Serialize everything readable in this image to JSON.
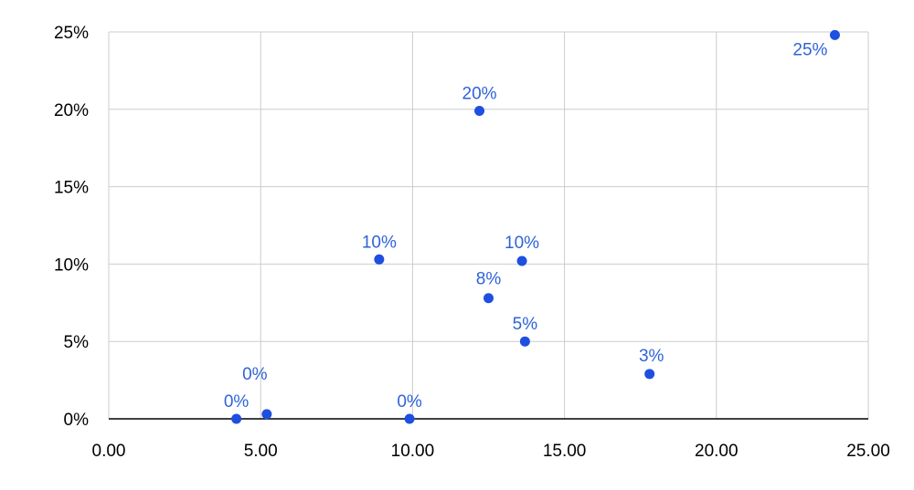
{
  "chart_data": {
    "type": "scatter",
    "title": "",
    "xlabel": "",
    "ylabel": "",
    "xlim": [
      0,
      25
    ],
    "ylim": [
      0,
      0.25
    ],
    "x_ticks": [
      "0.00",
      "5.00",
      "10.00",
      "15.00",
      "20.00",
      "25.00"
    ],
    "y_ticks": [
      "0%",
      "5%",
      "10%",
      "15%",
      "20%",
      "25%"
    ],
    "grid": true,
    "legend": "none",
    "marker_color": "#1f4fe0",
    "label_color": "#2f63d8",
    "series": [
      {
        "points": [
          {
            "x": 4.2,
            "y": 0.0,
            "label": "0%"
          },
          {
            "x": 5.2,
            "y": 0.003,
            "label": "0%"
          },
          {
            "x": 9.9,
            "y": 0.0,
            "label": "0%"
          },
          {
            "x": 8.9,
            "y": 0.103,
            "label": "10%"
          },
          {
            "x": 12.2,
            "y": 0.199,
            "label": "20%"
          },
          {
            "x": 12.5,
            "y": 0.078,
            "label": "8%"
          },
          {
            "x": 13.6,
            "y": 0.102,
            "label": "10%"
          },
          {
            "x": 13.7,
            "y": 0.05,
            "label": "5%"
          },
          {
            "x": 17.8,
            "y": 0.029,
            "label": "3%"
          },
          {
            "x": 23.9,
            "y": 0.248,
            "label": "25%"
          }
        ]
      }
    ]
  }
}
